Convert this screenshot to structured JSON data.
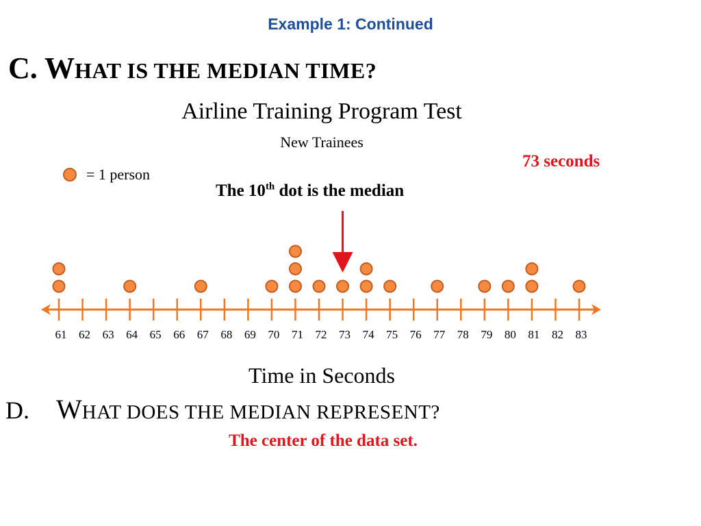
{
  "header": {
    "title": "Example 1: Continued"
  },
  "question_c": {
    "prefix": "C. ",
    "first_letter": "W",
    "rest": "hat is the median time?"
  },
  "answer_c": "73 seconds",
  "legend": {
    "label": "= 1 person"
  },
  "median_note": {
    "before": "The 10",
    "superscript": "th",
    "after": " dot is the median"
  },
  "question_d": {
    "prefix": "D.",
    "first_letter": "W",
    "rest": "hat does the median represent?"
  },
  "answer_d": "The center of the data set.",
  "colors": {
    "dot_fill": "#f58a42",
    "dot_stroke": "#c85c1c",
    "axis": "#f27522",
    "arrow": "#e0161c",
    "header": "#1f4e99"
  },
  "chart_data": {
    "type": "scatter",
    "title": "Airline Training Program Test",
    "subtitle": "New Trainees",
    "xlabel": "Time in Seconds",
    "ylabel": "",
    "xlim": [
      61,
      83
    ],
    "ticks": [
      61,
      62,
      63,
      64,
      65,
      66,
      67,
      68,
      69,
      70,
      71,
      72,
      73,
      74,
      75,
      76,
      77,
      78,
      79,
      80,
      81,
      82,
      83
    ],
    "counts": [
      {
        "x": 61,
        "count": 2
      },
      {
        "x": 64,
        "count": 1
      },
      {
        "x": 67,
        "count": 1
      },
      {
        "x": 70,
        "count": 1
      },
      {
        "x": 71,
        "count": 3
      },
      {
        "x": 72,
        "count": 1
      },
      {
        "x": 73,
        "count": 1
      },
      {
        "x": 74,
        "count": 2
      },
      {
        "x": 75,
        "count": 1
      },
      {
        "x": 77,
        "count": 1
      },
      {
        "x": 79,
        "count": 1
      },
      {
        "x": 80,
        "count": 1
      },
      {
        "x": 81,
        "count": 2
      },
      {
        "x": 83,
        "count": 1
      }
    ],
    "median": 73,
    "grid": false,
    "legend": "top-left"
  }
}
